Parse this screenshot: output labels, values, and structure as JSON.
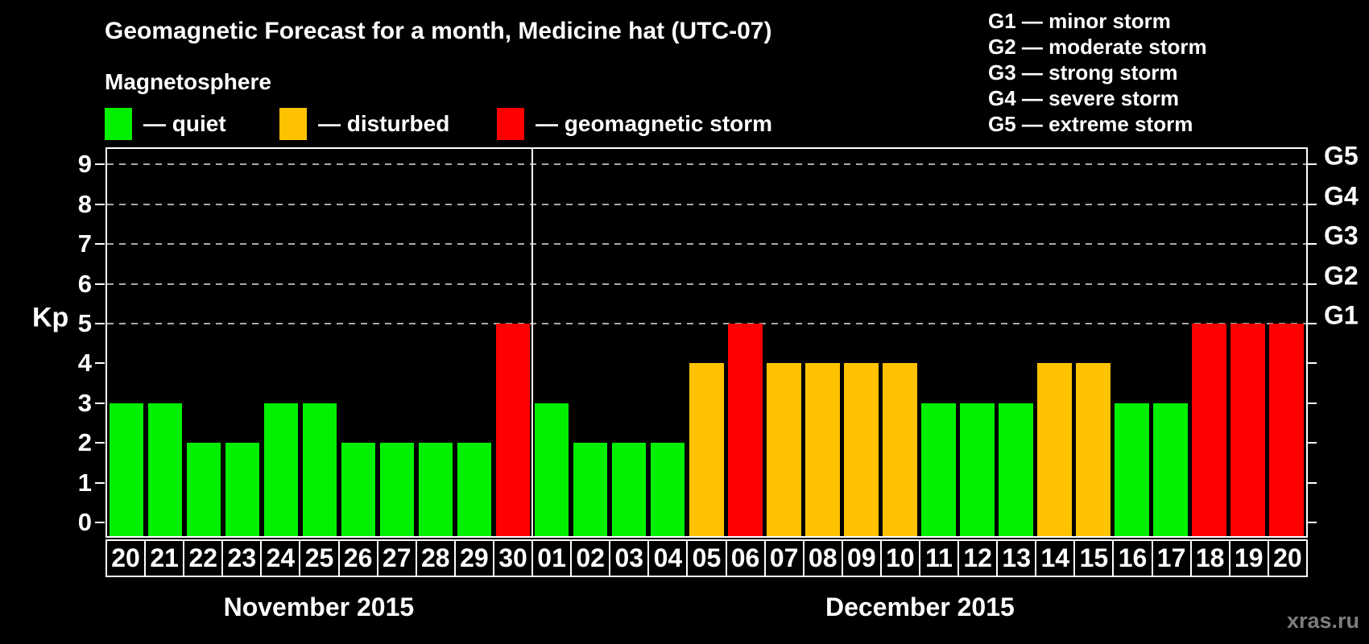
{
  "title": "Geomagnetic Forecast for a month, Medicine hat (UTC-07)",
  "legend": {
    "heading": "Magnetosphere",
    "items": [
      {
        "name": "quiet",
        "label": "— quiet",
        "color": "#00f000"
      },
      {
        "name": "disturbed",
        "label": "— disturbed",
        "color": "#ffc200"
      },
      {
        "name": "storm",
        "label": "— geomagnetic storm",
        "color": "#ff0000"
      }
    ]
  },
  "storm_scale_legend": [
    "G1 — minor storm",
    "G2 — moderate storm",
    "G3 — strong storm",
    "G4 — severe storm",
    "G5 — extreme storm"
  ],
  "watermark": "xras.ru",
  "chart_data": {
    "type": "bar",
    "title": "Geomagnetic Forecast for a month, Medicine hat (UTC-07)",
    "ylabel": "Kp",
    "ylim": [
      0,
      9
    ],
    "y_ticks": [
      0,
      1,
      2,
      3,
      4,
      5,
      6,
      7,
      8,
      9
    ],
    "right_axis_labels": [
      {
        "label": "G1",
        "kp": 5
      },
      {
        "label": "G2",
        "kp": 6
      },
      {
        "label": "G3",
        "kp": 7
      },
      {
        "label": "G4",
        "kp": 8
      },
      {
        "label": "G5",
        "kp": 9
      }
    ],
    "gridlines_at": [
      5,
      6,
      7,
      8,
      9
    ],
    "grid": "dashed-horizontal",
    "legend_position": "top",
    "status_colors": {
      "quiet": "#00f000",
      "disturbed": "#ffc200",
      "storm": "#ff0000"
    },
    "months": [
      {
        "label": "November 2015",
        "days": [
          {
            "day": "20",
            "kp": 3,
            "status": "quiet"
          },
          {
            "day": "21",
            "kp": 3,
            "status": "quiet"
          },
          {
            "day": "22",
            "kp": 2,
            "status": "quiet"
          },
          {
            "day": "23",
            "kp": 2,
            "status": "quiet"
          },
          {
            "day": "24",
            "kp": 3,
            "status": "quiet"
          },
          {
            "day": "25",
            "kp": 3,
            "status": "quiet"
          },
          {
            "day": "26",
            "kp": 2,
            "status": "quiet"
          },
          {
            "day": "27",
            "kp": 2,
            "status": "quiet"
          },
          {
            "day": "28",
            "kp": 2,
            "status": "quiet"
          },
          {
            "day": "29",
            "kp": 2,
            "status": "quiet"
          },
          {
            "day": "30",
            "kp": 5,
            "status": "storm"
          }
        ]
      },
      {
        "label": "December 2015",
        "days": [
          {
            "day": "01",
            "kp": 3,
            "status": "quiet"
          },
          {
            "day": "02",
            "kp": 2,
            "status": "quiet"
          },
          {
            "day": "03",
            "kp": 2,
            "status": "quiet"
          },
          {
            "day": "04",
            "kp": 2,
            "status": "quiet"
          },
          {
            "day": "05",
            "kp": 4,
            "status": "disturbed"
          },
          {
            "day": "06",
            "kp": 5,
            "status": "storm"
          },
          {
            "day": "07",
            "kp": 4,
            "status": "disturbed"
          },
          {
            "day": "08",
            "kp": 4,
            "status": "disturbed"
          },
          {
            "day": "09",
            "kp": 4,
            "status": "disturbed"
          },
          {
            "day": "10",
            "kp": 4,
            "status": "disturbed"
          },
          {
            "day": "11",
            "kp": 3,
            "status": "quiet"
          },
          {
            "day": "12",
            "kp": 3,
            "status": "quiet"
          },
          {
            "day": "13",
            "kp": 3,
            "status": "quiet"
          },
          {
            "day": "14",
            "kp": 4,
            "status": "disturbed"
          },
          {
            "day": "15",
            "kp": 4,
            "status": "disturbed"
          },
          {
            "day": "16",
            "kp": 3,
            "status": "quiet"
          },
          {
            "day": "17",
            "kp": 3,
            "status": "quiet"
          },
          {
            "day": "18",
            "kp": 5,
            "status": "storm"
          },
          {
            "day": "19",
            "kp": 5,
            "status": "storm"
          },
          {
            "day": "20",
            "kp": 5,
            "status": "storm"
          }
        ]
      }
    ]
  }
}
